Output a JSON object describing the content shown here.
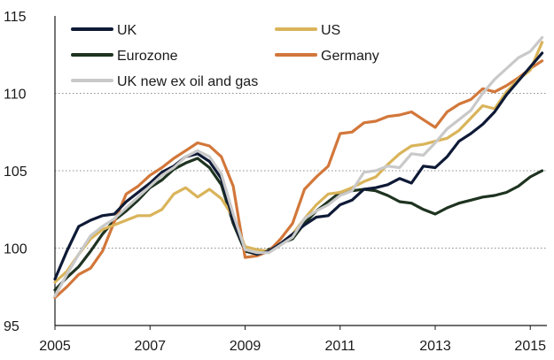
{
  "chart_data": {
    "type": "line",
    "title": "",
    "xlabel": "",
    "ylabel": "",
    "xlim": [
      2005,
      2015.35
    ],
    "ylim": [
      95,
      115
    ],
    "grid": true,
    "legend_position": "top-left",
    "y_ticks": [
      "95",
      "100",
      "105",
      "110",
      "115"
    ],
    "x_ticks": [
      "2005",
      "2007",
      "2009",
      "2011",
      "2013",
      "2015"
    ],
    "series": [
      {
        "name": "UK",
        "color": "#0e1a36",
        "x": [
          2005,
          2005.25,
          2005.5,
          2005.75,
          2006,
          2006.25,
          2006.5,
          2006.75,
          2007,
          2007.25,
          2007.5,
          2007.75,
          2008,
          2008.25,
          2008.5,
          2008.75,
          2009,
          2009.25,
          2009.5,
          2009.75,
          2010,
          2010.25,
          2010.5,
          2010.75,
          2011,
          2011.25,
          2011.5,
          2011.75,
          2012,
          2012.25,
          2012.5,
          2012.75,
          2013,
          2013.25,
          2013.5,
          2013.75,
          2014,
          2014.25,
          2014.5,
          2014.75,
          2015,
          2015.25
        ],
        "values": [
          98.0,
          99.8,
          101.4,
          101.8,
          102.1,
          102.2,
          103.0,
          103.6,
          104.2,
          104.9,
          105.3,
          105.9,
          106.1,
          105.6,
          104.5,
          101.8,
          99.9,
          99.6,
          99.8,
          100.3,
          100.9,
          101.5,
          102.0,
          102.1,
          102.8,
          103.1,
          103.8,
          103.9,
          104.1,
          104.5,
          104.2,
          105.3,
          105.2,
          105.9,
          106.9,
          107.4,
          108.0,
          108.8,
          109.9,
          110.8,
          111.7,
          112.6
        ]
      },
      {
        "name": "US",
        "color": "#d9b45a",
        "x": [
          2005,
          2005.25,
          2005.5,
          2005.75,
          2006,
          2006.25,
          2006.5,
          2006.75,
          2007,
          2007.25,
          2007.5,
          2007.75,
          2008,
          2008.25,
          2008.5,
          2008.75,
          2009,
          2009.25,
          2009.5,
          2009.75,
          2010,
          2010.25,
          2010.5,
          2010.75,
          2011,
          2011.25,
          2011.5,
          2011.75,
          2012,
          2012.25,
          2012.5,
          2012.75,
          2013,
          2013.25,
          2013.5,
          2013.75,
          2014,
          2014.25,
          2014.5,
          2014.75,
          2015,
          2015.25
        ],
        "values": [
          97.8,
          98.5,
          99.6,
          100.6,
          101.2,
          101.5,
          101.8,
          102.1,
          102.1,
          102.5,
          103.5,
          103.9,
          103.3,
          103.8,
          103.2,
          102.0,
          100.1,
          99.9,
          99.8,
          100.3,
          100.9,
          101.9,
          102.8,
          103.5,
          103.6,
          103.9,
          104.3,
          104.6,
          105.4,
          106.1,
          106.6,
          106.7,
          106.9,
          107.1,
          107.6,
          108.4,
          109.2,
          109.0,
          110.1,
          110.9,
          111.5,
          113.3
        ]
      },
      {
        "name": "Eurozone",
        "color": "#1e3320",
        "x": [
          2005,
          2005.25,
          2005.5,
          2005.75,
          2006,
          2006.25,
          2006.5,
          2006.75,
          2007,
          2007.25,
          2007.5,
          2007.75,
          2008,
          2008.25,
          2008.5,
          2008.75,
          2009,
          2009.25,
          2009.5,
          2009.75,
          2010,
          2010.25,
          2010.5,
          2010.75,
          2011,
          2011.25,
          2011.5,
          2011.75,
          2012,
          2012.25,
          2012.5,
          2012.75,
          2013,
          2013.25,
          2013.5,
          2013.75,
          2014,
          2014.25,
          2014.5,
          2014.75,
          2015,
          2015.25
        ],
        "values": [
          97.3,
          98.1,
          98.8,
          99.8,
          100.9,
          101.8,
          102.4,
          103.1,
          103.9,
          104.4,
          105.1,
          105.5,
          105.8,
          105.2,
          104.1,
          101.6,
          99.8,
          99.6,
          99.9,
          100.3,
          100.6,
          101.6,
          102.4,
          103.0,
          103.6,
          103.7,
          103.8,
          103.7,
          103.4,
          103.0,
          102.9,
          102.5,
          102.2,
          102.6,
          102.9,
          103.1,
          103.3,
          103.4,
          103.6,
          104.0,
          104.6,
          105.0
        ]
      },
      {
        "name": "Germany",
        "color": "#d2773a",
        "x": [
          2005,
          2005.25,
          2005.5,
          2005.75,
          2006,
          2006.25,
          2006.5,
          2006.75,
          2007,
          2007.25,
          2007.5,
          2007.75,
          2008,
          2008.25,
          2008.5,
          2008.75,
          2009,
          2009.25,
          2009.5,
          2009.75,
          2010,
          2010.25,
          2010.5,
          2010.75,
          2011,
          2011.25,
          2011.5,
          2011.75,
          2012,
          2012.25,
          2012.5,
          2012.75,
          2013,
          2013.25,
          2013.5,
          2013.75,
          2014,
          2014.25,
          2014.5,
          2014.75,
          2015,
          2015.25
        ],
        "values": [
          96.8,
          97.5,
          98.3,
          98.7,
          99.8,
          101.7,
          103.5,
          104.0,
          104.7,
          105.2,
          105.8,
          106.3,
          106.8,
          106.6,
          105.9,
          104.0,
          99.4,
          99.5,
          99.8,
          100.6,
          101.6,
          103.8,
          104.6,
          105.3,
          107.4,
          107.5,
          108.1,
          108.2,
          108.5,
          108.6,
          108.8,
          108.3,
          107.8,
          108.8,
          109.3,
          109.6,
          110.3,
          110.1,
          110.5,
          111.0,
          111.6,
          112.1
        ]
      },
      {
        "name": "UK new ex oil and gas",
        "color": "#c9c9c9",
        "x": [
          2005,
          2005.25,
          2005.5,
          2005.75,
          2006,
          2006.25,
          2006.5,
          2006.75,
          2007,
          2007.25,
          2007.5,
          2007.75,
          2008,
          2008.25,
          2008.5,
          2008.75,
          2009,
          2009.25,
          2009.5,
          2009.75,
          2010,
          2010.25,
          2010.5,
          2010.75,
          2011,
          2011.25,
          2011.5,
          2011.75,
          2012,
          2012.25,
          2012.5,
          2012.75,
          2013,
          2013.25,
          2013.5,
          2013.75,
          2014,
          2014.25,
          2014.5,
          2014.75,
          2015,
          2015.25
        ],
        "values": [
          96.9,
          98.3,
          99.6,
          100.8,
          101.4,
          101.9,
          102.6,
          103.3,
          104.0,
          104.7,
          105.2,
          105.9,
          106.3,
          105.9,
          104.8,
          102.2,
          99.9,
          99.7,
          99.7,
          100.2,
          100.7,
          101.9,
          102.4,
          102.8,
          103.4,
          103.7,
          104.9,
          105.0,
          105.3,
          105.2,
          106.1,
          106.0,
          106.8,
          107.7,
          108.3,
          108.9,
          110.0,
          110.9,
          111.6,
          112.3,
          112.7,
          113.6
        ]
      }
    ]
  }
}
